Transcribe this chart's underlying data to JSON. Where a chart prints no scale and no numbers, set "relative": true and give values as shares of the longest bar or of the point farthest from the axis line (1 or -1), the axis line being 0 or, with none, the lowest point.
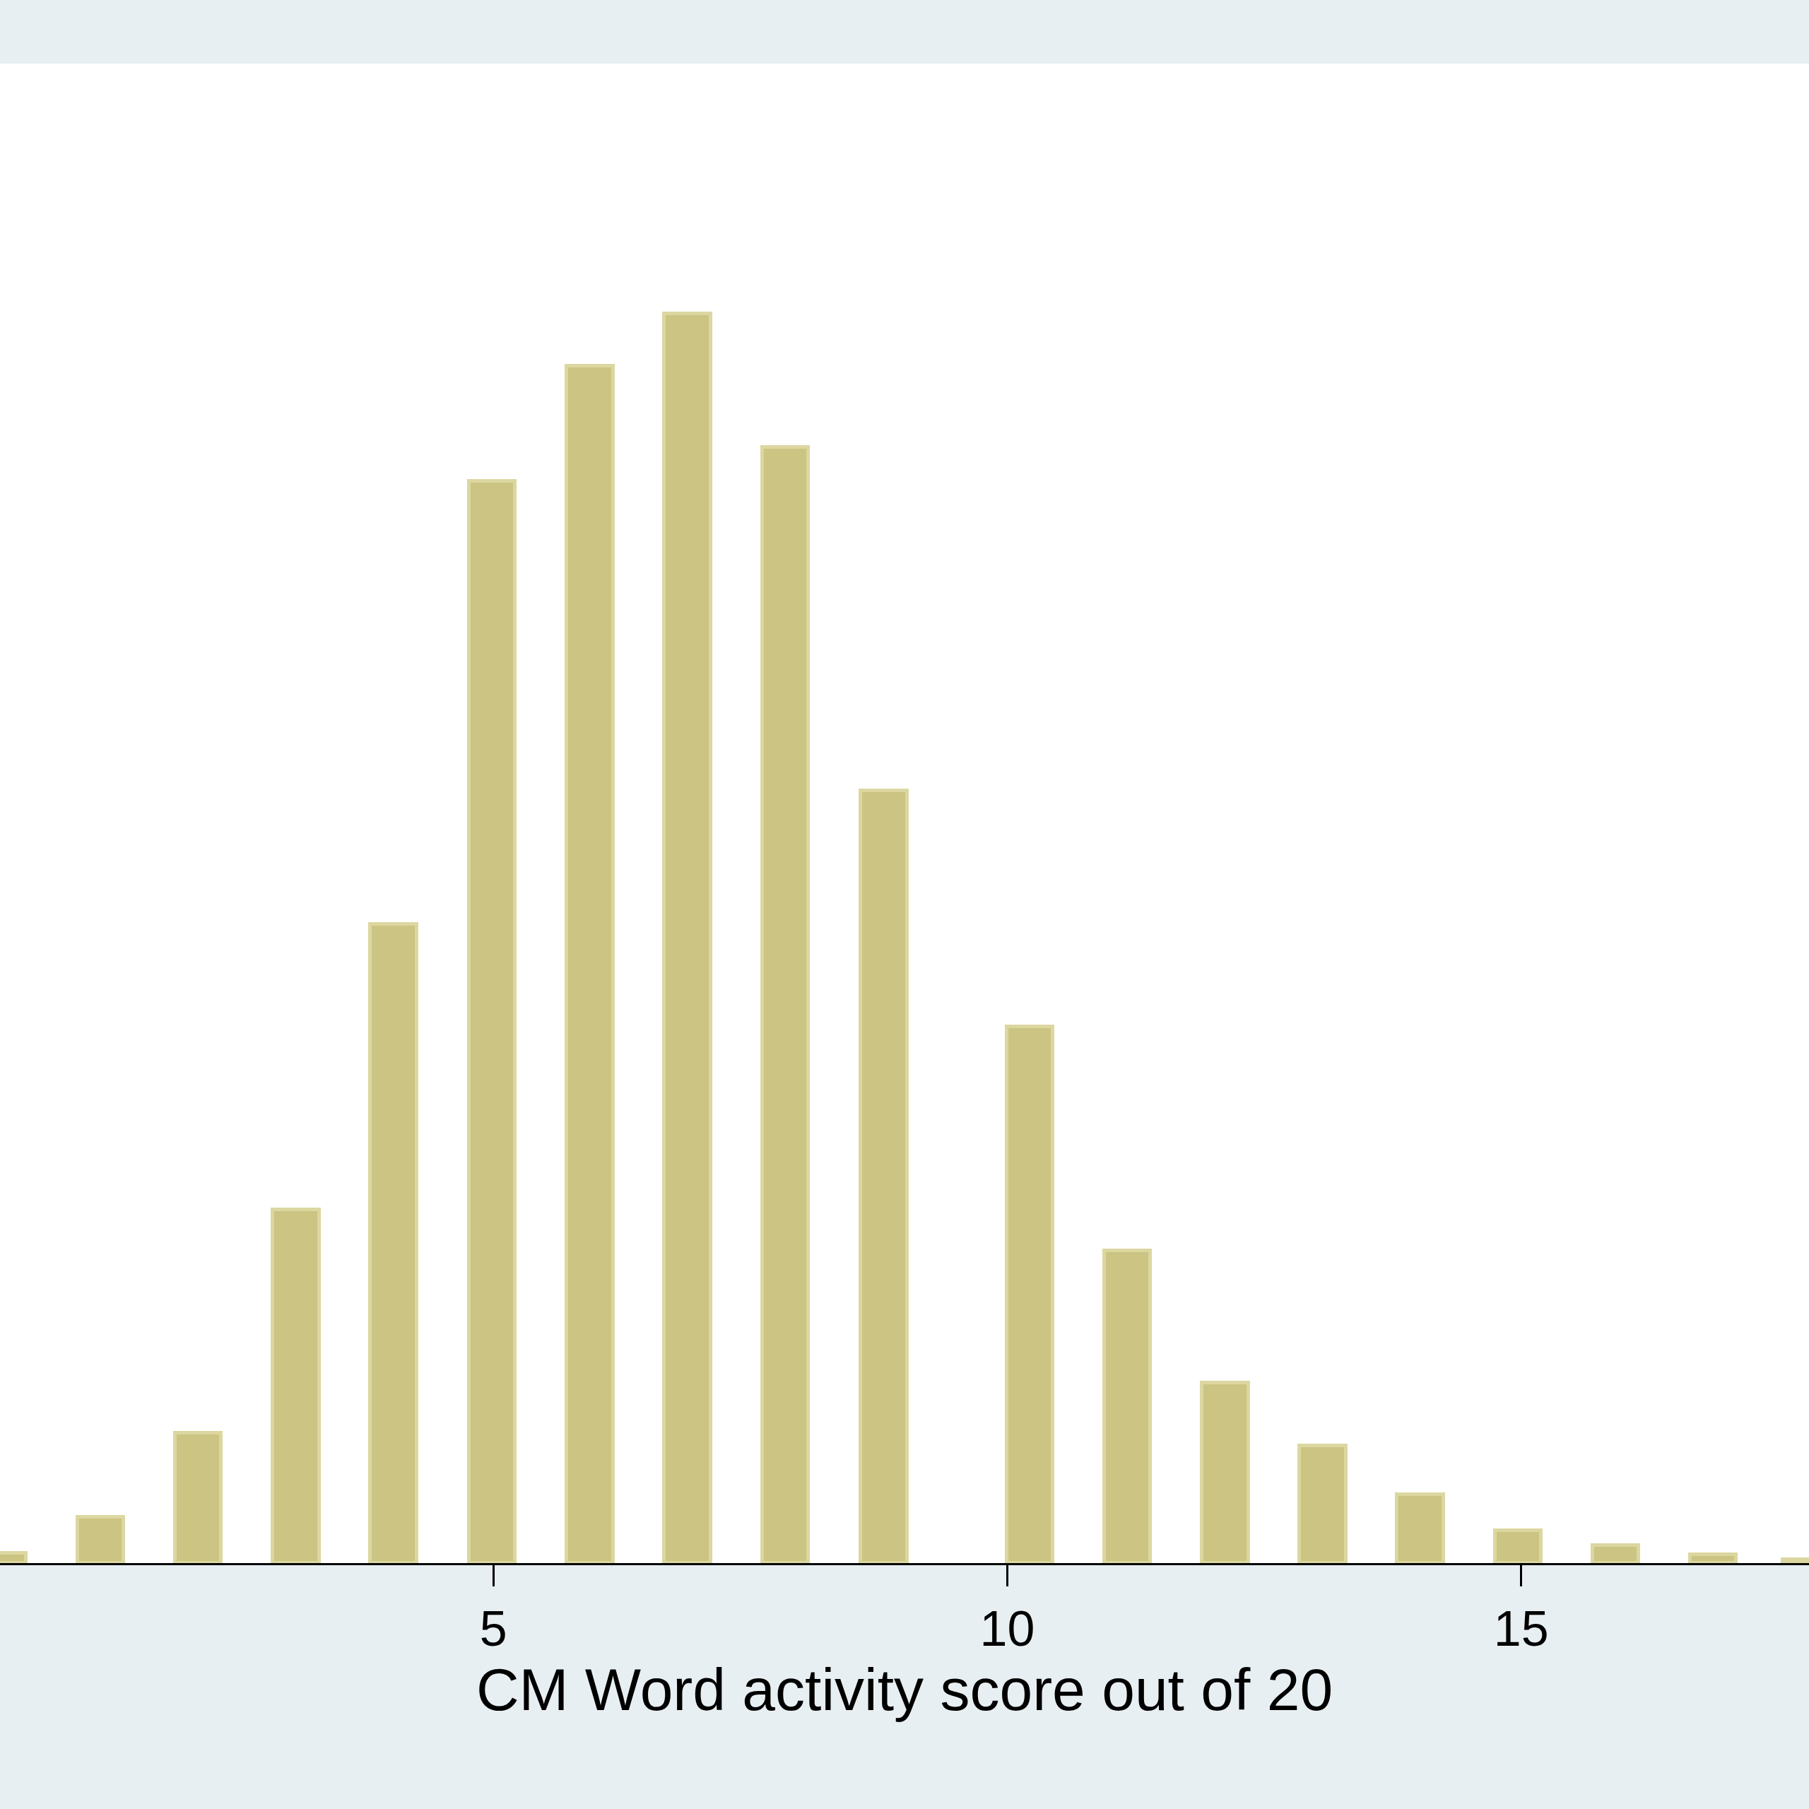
{
  "chart_data": {
    "type": "bar",
    "relative": true,
    "xlabel": "CM Word activity score out of 20",
    "x": [
      0.23,
      1.18,
      2.13,
      3.08,
      4.03,
      4.99,
      5.94,
      6.89,
      7.84,
      8.8,
      10.22,
      11.17,
      12.12,
      13.07,
      14.02,
      14.97,
      15.92,
      16.87,
      17.77
    ],
    "values": [
      0.008,
      0.037,
      0.104,
      0.283,
      0.511,
      0.866,
      0.958,
      1.0,
      0.893,
      0.618,
      0.429,
      0.25,
      0.144,
      0.094,
      0.055,
      0.026,
      0.014,
      0.007,
      0.003
    ],
    "color": "#cbc482",
    "xlim": [
      0.2,
      17.8
    ],
    "xticks": [
      5,
      10,
      15
    ]
  }
}
